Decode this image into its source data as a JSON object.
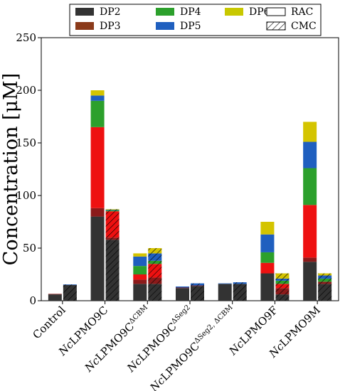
{
  "chart_data": {
    "type": "bar",
    "stacked": true,
    "grouped_pairs": [
      "RAC",
      "CMC"
    ],
    "categories": [
      {
        "label": "Control",
        "base": "Control",
        "sup": ""
      },
      {
        "label": "NcLPMO9C",
        "base": "Nc",
        "rest": "LPMO9C",
        "sup": ""
      },
      {
        "label": "NcLPMO9CΔCBM",
        "base": "Nc",
        "rest": "LPMO9C",
        "sup": "ΔCBM"
      },
      {
        "label": "NcLPMO9CΔSeg2",
        "base": "Nc",
        "rest": "LPMO9C",
        "sup": "ΔSeg2"
      },
      {
        "label": "NcLPMO9CΔSeg2, ΔCBM",
        "base": "Nc",
        "rest": "LPMO9C",
        "sup": "ΔSeg2, ΔCBM"
      },
      {
        "label": "NcLPMO9F",
        "base": "Nc",
        "rest": "LPMO9F",
        "sup": ""
      },
      {
        "label": "NcLPMO9M",
        "base": "Nc",
        "rest": "LPMO9M",
        "sup": ""
      }
    ],
    "ylabel": "Concentration [μM]",
    "ylim": [
      0,
      250
    ],
    "yticks": [
      0,
      50,
      100,
      150,
      200,
      250
    ],
    "legend": {
      "placement": "top",
      "entries": [
        {
          "label": "DP2",
          "color": "#333333",
          "pattern": "solid"
        },
        {
          "label": "DP4",
          "color": "#2ca02c",
          "pattern": "solid"
        },
        {
          "label": "DP6",
          "color": "#c8c800",
          "pattern": "solid"
        },
        {
          "label": "RAC",
          "color": "#ffffff",
          "pattern": "solid"
        },
        {
          "label": "DP3",
          "color": "#8b3a1a",
          "pattern": "solid"
        },
        {
          "label": "DP5",
          "color": "#1f5fbf",
          "pattern": "solid"
        },
        {
          "label": "CMC",
          "color": "#ffffff",
          "pattern": "hatch"
        }
      ]
    },
    "series_colors": {
      "DP2": "#333333",
      "DP3": "#8b1a1a",
      "DP3b": "#ee1111",
      "DP4": "#2ca02c",
      "DP5": "#1f5fbf",
      "DP6": "#d4c400"
    },
    "series": [
      {
        "name": "DP2",
        "RAC": [
          6,
          80,
          16,
          12,
          16,
          26,
          37
        ],
        "CMC": [
          15,
          58,
          16,
          14,
          16,
          6,
          16
        ]
      },
      {
        "name": "DP3",
        "RAC": [
          0.5,
          8,
          4,
          0.5,
          0,
          0,
          4
        ],
        "CMC": [
          0,
          2,
          6,
          0.5,
          0,
          6,
          2
        ]
      },
      {
        "name": "DP3b",
        "RAC": [
          0,
          77,
          5,
          0,
          0,
          10,
          50
        ],
        "CMC": [
          0,
          25,
          13,
          0,
          0,
          4,
          0
        ]
      },
      {
        "name": "DP4",
        "RAC": [
          0,
          25,
          8,
          0,
          0,
          10,
          35
        ],
        "CMC": [
          0,
          1,
          3,
          0,
          0,
          3,
          3
        ]
      },
      {
        "name": "DP5",
        "RAC": [
          0,
          5,
          9,
          1,
          0.5,
          17,
          25
        ],
        "CMC": [
          0.5,
          0.5,
          7,
          2,
          1.5,
          2,
          3
        ]
      },
      {
        "name": "DP6",
        "RAC": [
          0,
          5,
          3,
          0,
          0,
          12,
          19
        ],
        "CMC": [
          0,
          0.5,
          5,
          0,
          0,
          5,
          2
        ]
      }
    ]
  }
}
